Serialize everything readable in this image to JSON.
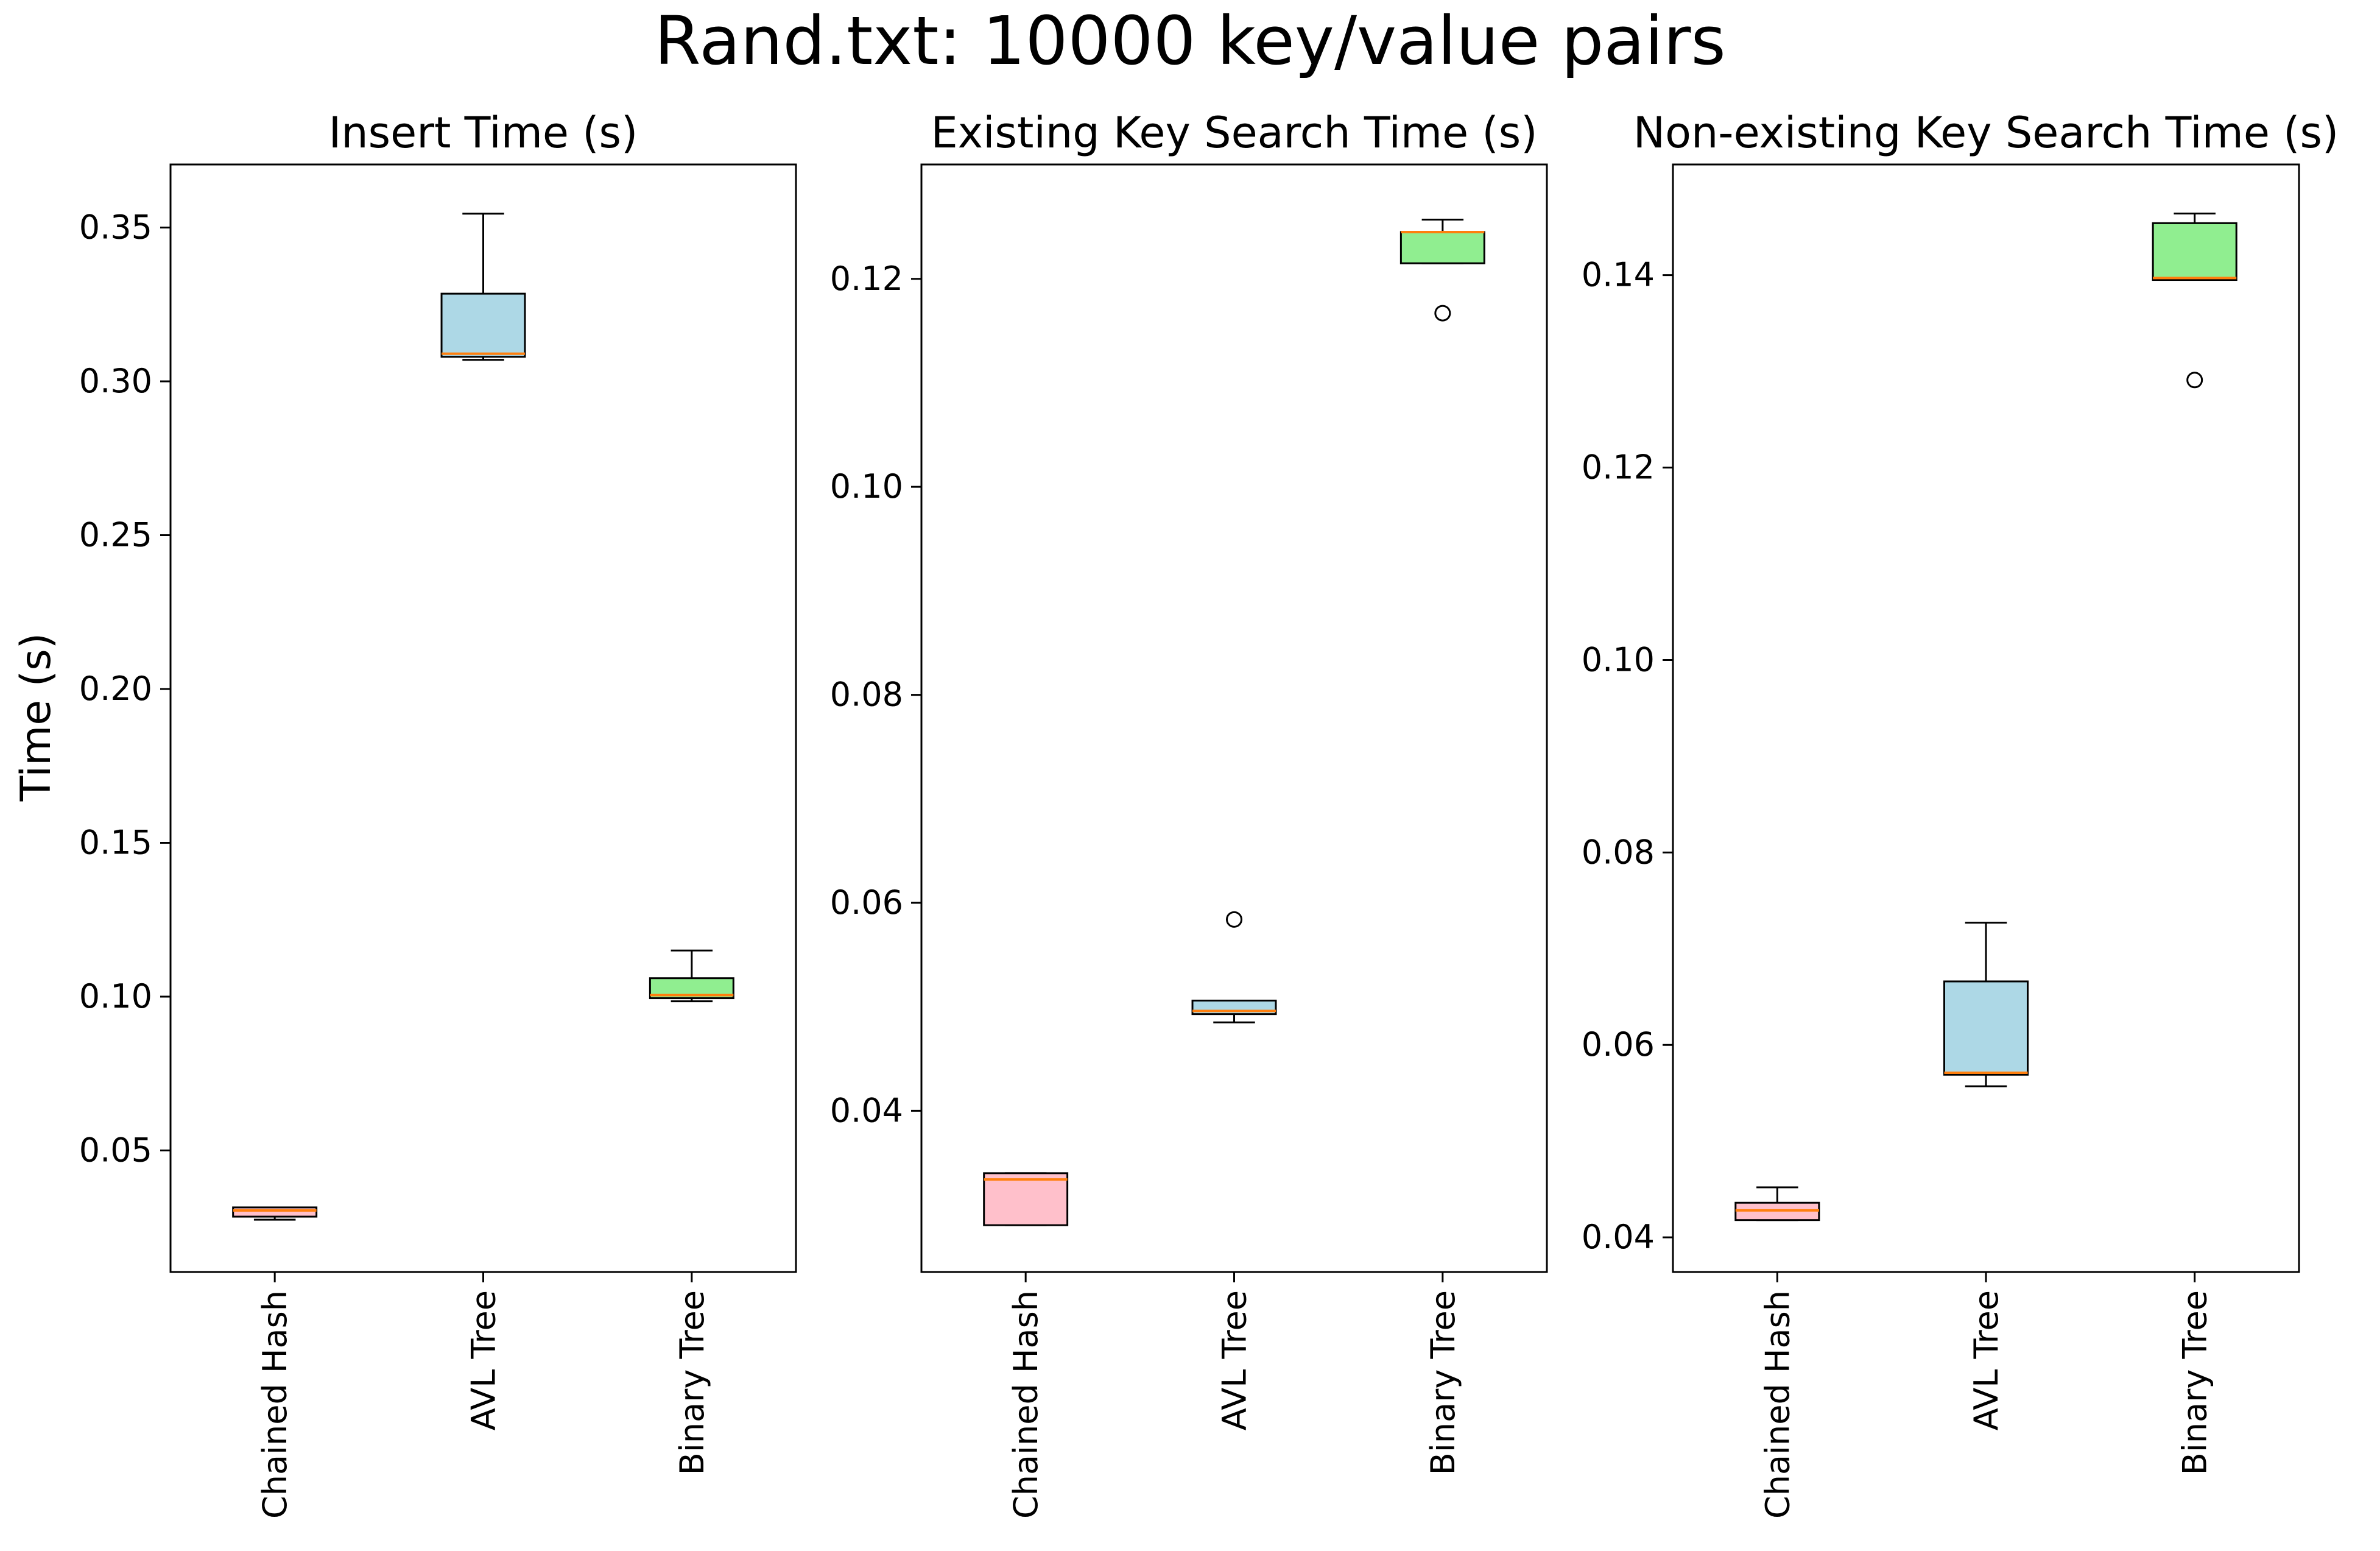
{
  "figure": {
    "title": "Rand.txt: 10000 key/value pairs",
    "ylabel": "Time (s)"
  },
  "colors": {
    "axis": "#000000",
    "median": "#ff7f0e",
    "box_edge": "#000000"
  },
  "chart_data": [
    {
      "type": "box",
      "title": "Insert Time (s)",
      "categories": [
        "Chained Hash",
        "AVL Tree",
        "Binary Tree"
      ],
      "box_colors": [
        "#ffc0cb",
        "#add8e6",
        "#90ee90"
      ],
      "ylim": [
        0.0105,
        0.3705
      ],
      "yticks": [
        0.05,
        0.1,
        0.15,
        0.2,
        0.25,
        0.3,
        0.35
      ],
      "ytick_labels": [
        "0.05",
        "0.10",
        "0.15",
        "0.20",
        "0.25",
        "0.30",
        "0.35"
      ],
      "boxes": [
        {
          "whisker_low": 0.0275,
          "q1": 0.0285,
          "median": 0.0305,
          "q3": 0.0315,
          "whisker_high": 0.0315,
          "outliers": []
        },
        {
          "whisker_low": 0.307,
          "q1": 0.308,
          "median": 0.309,
          "q3": 0.3285,
          "whisker_high": 0.3545,
          "outliers": []
        },
        {
          "whisker_low": 0.0985,
          "q1": 0.0995,
          "median": 0.1005,
          "q3": 0.106,
          "whisker_high": 0.115,
          "outliers": []
        }
      ]
    },
    {
      "type": "box",
      "title": "Existing Key Search Time (s)",
      "categories": [
        "Chained Hash",
        "AVL Tree",
        "Binary Tree"
      ],
      "box_colors": [
        "#ffc0cb",
        "#add8e6",
        "#90ee90"
      ],
      "ylim": [
        0.0245,
        0.131
      ],
      "yticks": [
        0.04,
        0.06,
        0.08,
        0.1,
        0.12
      ],
      "ytick_labels": [
        "0.04",
        "0.06",
        "0.08",
        "0.10",
        "0.12"
      ],
      "boxes": [
        {
          "whisker_low": 0.029,
          "q1": 0.029,
          "median": 0.0334,
          "q3": 0.034,
          "whisker_high": 0.034,
          "outliers": []
        },
        {
          "whisker_low": 0.0485,
          "q1": 0.0493,
          "median": 0.0496,
          "q3": 0.0506,
          "whisker_high": 0.0506,
          "outliers": [
            0.0584
          ]
        },
        {
          "whisker_low": 0.1215,
          "q1": 0.1215,
          "median": 0.1245,
          "q3": 0.1245,
          "whisker_high": 0.1257,
          "outliers": [
            0.1167
          ]
        }
      ]
    },
    {
      "type": "box",
      "title": "Non-existing Key Search Time (s)",
      "categories": [
        "Chained Hash",
        "AVL Tree",
        "Binary Tree"
      ],
      "box_colors": [
        "#ffc0cb",
        "#add8e6",
        "#90ee90"
      ],
      "ylim": [
        0.0364,
        0.1515
      ],
      "yticks": [
        0.04,
        0.06,
        0.08,
        0.1,
        0.12,
        0.14
      ],
      "ytick_labels": [
        "0.04",
        "0.06",
        "0.08",
        "0.10",
        "0.12",
        "0.14"
      ],
      "boxes": [
        {
          "whisker_low": 0.0418,
          "q1": 0.0418,
          "median": 0.0428,
          "q3": 0.0436,
          "whisker_high": 0.0452,
          "outliers": []
        },
        {
          "whisker_low": 0.0557,
          "q1": 0.0569,
          "median": 0.0571,
          "q3": 0.0666,
          "whisker_high": 0.0727,
          "outliers": []
        },
        {
          "whisker_low": 0.1395,
          "q1": 0.1395,
          "median": 0.1397,
          "q3": 0.1454,
          "whisker_high": 0.1464,
          "outliers": [
            0.1291
          ]
        }
      ]
    }
  ]
}
